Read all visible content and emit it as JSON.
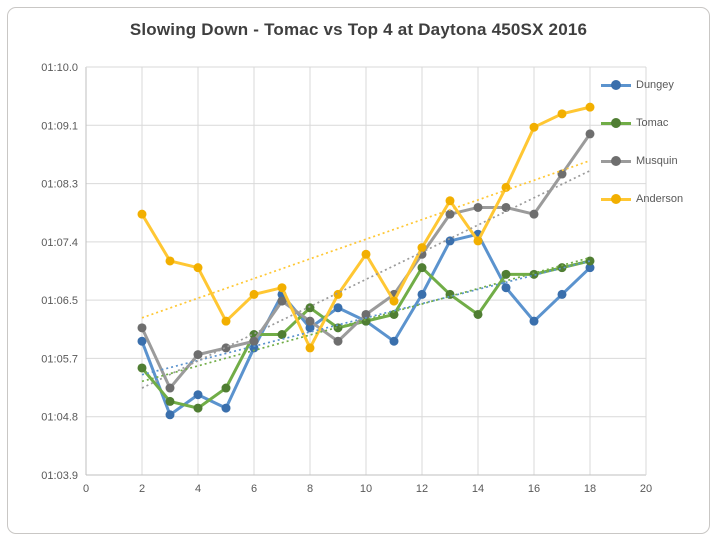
{
  "chart_data": {
    "type": "line",
    "title": "Slowing Down - Tomac vs Top 4 at Daytona 450SX 2016",
    "xlabel": "",
    "ylabel": "",
    "x_unit": "lap",
    "xlim": [
      0,
      20
    ],
    "x_ticks": [
      0,
      2,
      4,
      6,
      8,
      10,
      12,
      14,
      16,
      18,
      20
    ],
    "ylim_seconds": [
      63.9,
      70.0
    ],
    "y_ticks": [
      {
        "value": 70.0,
        "label": "01:10.0"
      },
      {
        "value": 69.1286,
        "label": "01:09.1"
      },
      {
        "value": 68.2571,
        "label": "01:08.3"
      },
      {
        "value": 67.3857,
        "label": "01:07.4"
      },
      {
        "value": 66.5143,
        "label": "01:06.5"
      },
      {
        "value": 65.6429,
        "label": "01:05.7"
      },
      {
        "value": 64.7714,
        "label": "01:04.8"
      },
      {
        "value": 63.9,
        "label": "01:03.9"
      }
    ],
    "grid": true,
    "legend_position": "right",
    "laps": [
      2,
      3,
      4,
      5,
      6,
      7,
      8,
      9,
      10,
      11,
      12,
      13,
      14,
      15,
      16,
      17,
      18
    ],
    "series": [
      {
        "name": "Dungey",
        "line_color": "#5b93ce",
        "marker_color": "#3a6fac",
        "values": [
          65.9,
          64.8,
          65.1,
          64.9,
          65.8,
          66.6,
          66.1,
          66.4,
          66.2,
          65.9,
          66.6,
          67.4,
          67.5,
          66.7,
          66.2,
          66.6,
          67.0
        ]
      },
      {
        "name": "Tomac",
        "line_color": "#71ad47",
        "marker_color": "#507e33",
        "values": [
          65.5,
          65.0,
          64.9,
          65.2,
          66.0,
          66.0,
          66.4,
          66.1,
          66.2,
          66.3,
          67.0,
          66.6,
          66.3,
          66.9,
          66.9,
          67.0,
          67.1
        ]
      },
      {
        "name": "Musquin",
        "line_color": "#9b9b9b",
        "marker_color": "#6e6e6e",
        "values": [
          66.1,
          65.2,
          65.7,
          65.8,
          65.9,
          66.5,
          66.2,
          65.9,
          66.3,
          66.6,
          67.2,
          67.8,
          67.9,
          67.9,
          67.8,
          68.4,
          69.0
        ]
      },
      {
        "name": "Anderson",
        "line_color": "#ffc733",
        "marker_color": "#f2af00",
        "values": [
          67.8,
          67.1,
          67.0,
          66.2,
          66.6,
          66.7,
          65.8,
          66.6,
          67.2,
          66.5,
          67.3,
          68.0,
          67.4,
          68.2,
          69.1,
          69.3,
          69.4
        ]
      }
    ],
    "trendlines": [
      {
        "series": "Dungey",
        "start": 65.4,
        "end": 67.1
      },
      {
        "series": "Tomac",
        "start": 65.3,
        "end": 67.15
      },
      {
        "series": "Musquin",
        "start": 65.2,
        "end": 68.45
      },
      {
        "series": "Anderson",
        "start": 66.25,
        "end": 68.6
      }
    ],
    "colors": {
      "gridline": "#d9d9d9",
      "axis_line": "#bfbfbf",
      "tick_text": "#595959",
      "title_text": "#3f3f3f"
    }
  }
}
